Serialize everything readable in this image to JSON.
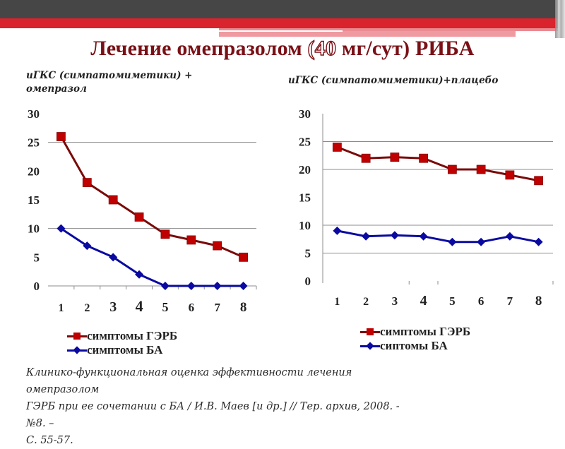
{
  "slide": {
    "title_part1": "Лечение омепразолом ",
    "title_highlight": "(40",
    "title_part2": " мг/сут) РИБА",
    "citation_lines": [
      "Клинико-функциональная оценка эффективности лечения омепразолом",
      "ГЭРБ при ее сочетании с БА / И.В. Маев [и др.] // Тер. архив, 2008. - №8. –",
      "С. 55-57."
    ],
    "colors": {
      "header_dark": "#464646",
      "header_red": "#d9232d",
      "title": "#7a1016",
      "gerd_series": "#c00000",
      "gerd_line": "#7a0a0a",
      "ba_series": "#0a0aa0"
    }
  },
  "chart_data": [
    {
      "type": "line",
      "title": "иГКС (симпатомиметики) + омепразол",
      "subtitle_lines": [
        "иГКС (симпатомиметики) +",
        "омепразол"
      ],
      "categories": [
        "1",
        "2",
        "3",
        "4",
        "5",
        "6",
        "7",
        "8"
      ],
      "yticks": [
        "0",
        "5",
        "10",
        "15",
        "20",
        "25",
        "30"
      ],
      "ylim": [
        0,
        30
      ],
      "gridlines": [
        10,
        25
      ],
      "series": [
        {
          "name": "симптомы ГЭРБ",
          "marker": "square",
          "values": [
            26,
            18,
            15,
            12,
            9,
            8,
            7,
            5
          ]
        },
        {
          "name": "симптомы БА",
          "marker": "diamond",
          "values": [
            10,
            7,
            5,
            2,
            0,
            0,
            0,
            0
          ]
        }
      ],
      "legend_labels": [
        "симптомы ГЭРБ",
        "симптомы БА"
      ],
      "legend": "bottom",
      "xlabel": "",
      "ylabel": ""
    },
    {
      "type": "line",
      "title": "иГКС (симпатомиметики)+плацебо",
      "subtitle_lines": [
        "иГКС (симпатомиметики)+плацебо"
      ],
      "categories": [
        "1",
        "2",
        "3",
        "4",
        "5",
        "6",
        "7",
        "8"
      ],
      "yticks": [
        "0",
        "5",
        "10",
        "15",
        "20",
        "25",
        "30"
      ],
      "ylim": [
        0,
        30
      ],
      "gridlines": [
        5,
        10,
        20,
        25
      ],
      "series": [
        {
          "name": "симптомы ГЭРБ",
          "marker": "square",
          "values": [
            24,
            22,
            22.2,
            22,
            20,
            20,
            19,
            18
          ]
        },
        {
          "name": "симптомы БА",
          "marker": "diamond",
          "values": [
            9,
            8,
            8.2,
            8,
            7,
            7,
            8,
            7
          ]
        }
      ],
      "legend_labels": [
        "симптомы ГЭРБ",
        "сиптомы БА"
      ],
      "legend": "bottom",
      "xlabel": "",
      "ylabel": ""
    }
  ]
}
